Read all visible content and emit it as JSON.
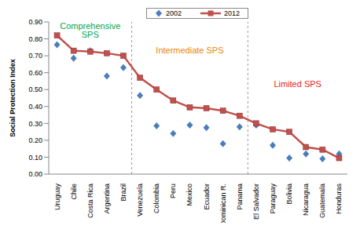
{
  "chart_data": {
    "type": "line",
    "y_label": "Social Protection Index",
    "categories": [
      "Uruguay",
      "Chile",
      "Costa Rica",
      "Argentina",
      "Brazil",
      "Venezuela",
      "Colombia",
      "Peru",
      "Mexico",
      "Ecuador",
      "Dominican R.",
      "Panama",
      "El Salvador",
      "Paraguay",
      "Bolivia",
      "Nicaragua",
      "Guatemala",
      "Honduras"
    ],
    "series": [
      {
        "name": "2002",
        "type": "scatter",
        "marker": "diamond",
        "color": "#4a7ebb",
        "values": [
          0.765,
          0.685,
          0.73,
          0.58,
          0.63,
          0.465,
          0.285,
          0.24,
          0.29,
          0.275,
          0.18,
          0.28,
          0.29,
          0.17,
          0.095,
          0.12,
          0.09,
          0.12
        ]
      },
      {
        "name": "2012",
        "type": "line",
        "marker": "square",
        "color": "#c0504d",
        "values": [
          0.82,
          0.73,
          0.725,
          0.715,
          0.7,
          0.57,
          0.5,
          0.435,
          0.395,
          0.39,
          0.375,
          0.345,
          0.3,
          0.265,
          0.25,
          0.16,
          0.145,
          0.095
        ]
      }
    ],
    "ylim": [
      0,
      0.9
    ],
    "yticks": [
      {
        "value": 0,
        "label": "0.00"
      },
      {
        "value": 0.1,
        "label": "0.10"
      },
      {
        "value": 0.2,
        "label": "0.20"
      },
      {
        "value": 0.3,
        "label": "0.30"
      },
      {
        "value": 0.4,
        "label": "0.40"
      },
      {
        "value": 0.5,
        "label": "0.50"
      },
      {
        "value": 0.6,
        "label": "0.60"
      },
      {
        "value": 0.7,
        "label": "0.70"
      },
      {
        "value": 0.8,
        "label": "0.80"
      },
      {
        "value": 0.9,
        "label": "0.90"
      }
    ],
    "grid": false,
    "legend": "top",
    "annotations": [
      {
        "text": [
          "Comprehensive",
          "SPS"
        ],
        "color": "#00a650",
        "first": "Uruguay",
        "last": "Brazil"
      },
      {
        "text": [
          "Intermediate SPS"
        ],
        "color": "#e8860c",
        "first": "Venezuela",
        "last": "Panama"
      },
      {
        "text": [
          "Limited SPS"
        ],
        "color": "#e81c1c",
        "first": "El Salvador",
        "last": "Honduras"
      }
    ]
  }
}
